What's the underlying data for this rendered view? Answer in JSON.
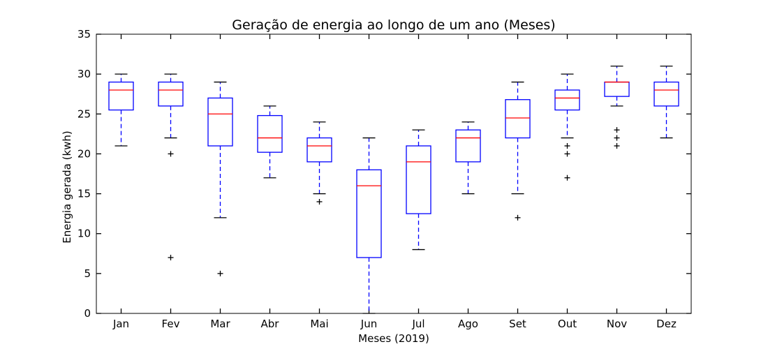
{
  "chart_data": {
    "type": "boxplot",
    "title": "Geração de energia ao longo de um ano (Meses)",
    "xlabel": "Meses (2019)",
    "ylabel": "Energia gerada (kwh)",
    "ylim": [
      0,
      35
    ],
    "yticks": [
      0,
      5,
      10,
      15,
      20,
      25,
      30,
      35
    ],
    "grid": false,
    "colors": {
      "box": "#0000ff",
      "median": "#ff0000",
      "whisker": "#0000ff",
      "cap": "#000000",
      "flier": "#000000"
    },
    "categories": [
      "Jan",
      "Fev",
      "Mar",
      "Abr",
      "Mai",
      "Jun",
      "Jul",
      "Ago",
      "Set",
      "Out",
      "Nov",
      "Dez"
    ],
    "boxes": [
      {
        "label": "Jan",
        "whislo": 21,
        "q1": 25.5,
        "med": 28,
        "q3": 29,
        "whishi": 30,
        "fliers": []
      },
      {
        "label": "Fev",
        "whislo": 22,
        "q1": 26,
        "med": 28,
        "q3": 29,
        "whishi": 30,
        "fliers": [
          20,
          7
        ]
      },
      {
        "label": "Mar",
        "whislo": 12,
        "q1": 21,
        "med": 25,
        "q3": 27,
        "whishi": 29,
        "fliers": [
          5
        ]
      },
      {
        "label": "Abr",
        "whislo": 17,
        "q1": 20.2,
        "med": 22,
        "q3": 24.8,
        "whishi": 26,
        "fliers": []
      },
      {
        "label": "Mai",
        "whislo": 15,
        "q1": 19,
        "med": 21,
        "q3": 22,
        "whishi": 24,
        "fliers": [
          14
        ]
      },
      {
        "label": "Jun",
        "whislo": 0,
        "q1": 7,
        "med": 16,
        "q3": 18,
        "whishi": 22,
        "fliers": []
      },
      {
        "label": "Jul",
        "whislo": 8,
        "q1": 12.5,
        "med": 19,
        "q3": 21,
        "whishi": 23,
        "fliers": []
      },
      {
        "label": "Ago",
        "whislo": 15,
        "q1": 19,
        "med": 22,
        "q3": 23,
        "whishi": 24,
        "fliers": []
      },
      {
        "label": "Set",
        "whislo": 15,
        "q1": 22,
        "med": 24.5,
        "q3": 26.8,
        "whishi": 29,
        "fliers": [
          12
        ]
      },
      {
        "label": "Out",
        "whislo": 22,
        "q1": 25.5,
        "med": 27,
        "q3": 28,
        "whishi": 30,
        "fliers": [
          21,
          20,
          17
        ]
      },
      {
        "label": "Nov",
        "whislo": 26,
        "q1": 27.2,
        "med": 29,
        "q3": 29,
        "whishi": 31,
        "fliers": [
          23,
          22,
          21
        ]
      },
      {
        "label": "Dez",
        "whislo": 22,
        "q1": 26,
        "med": 28,
        "q3": 29,
        "whishi": 31,
        "fliers": []
      }
    ]
  }
}
